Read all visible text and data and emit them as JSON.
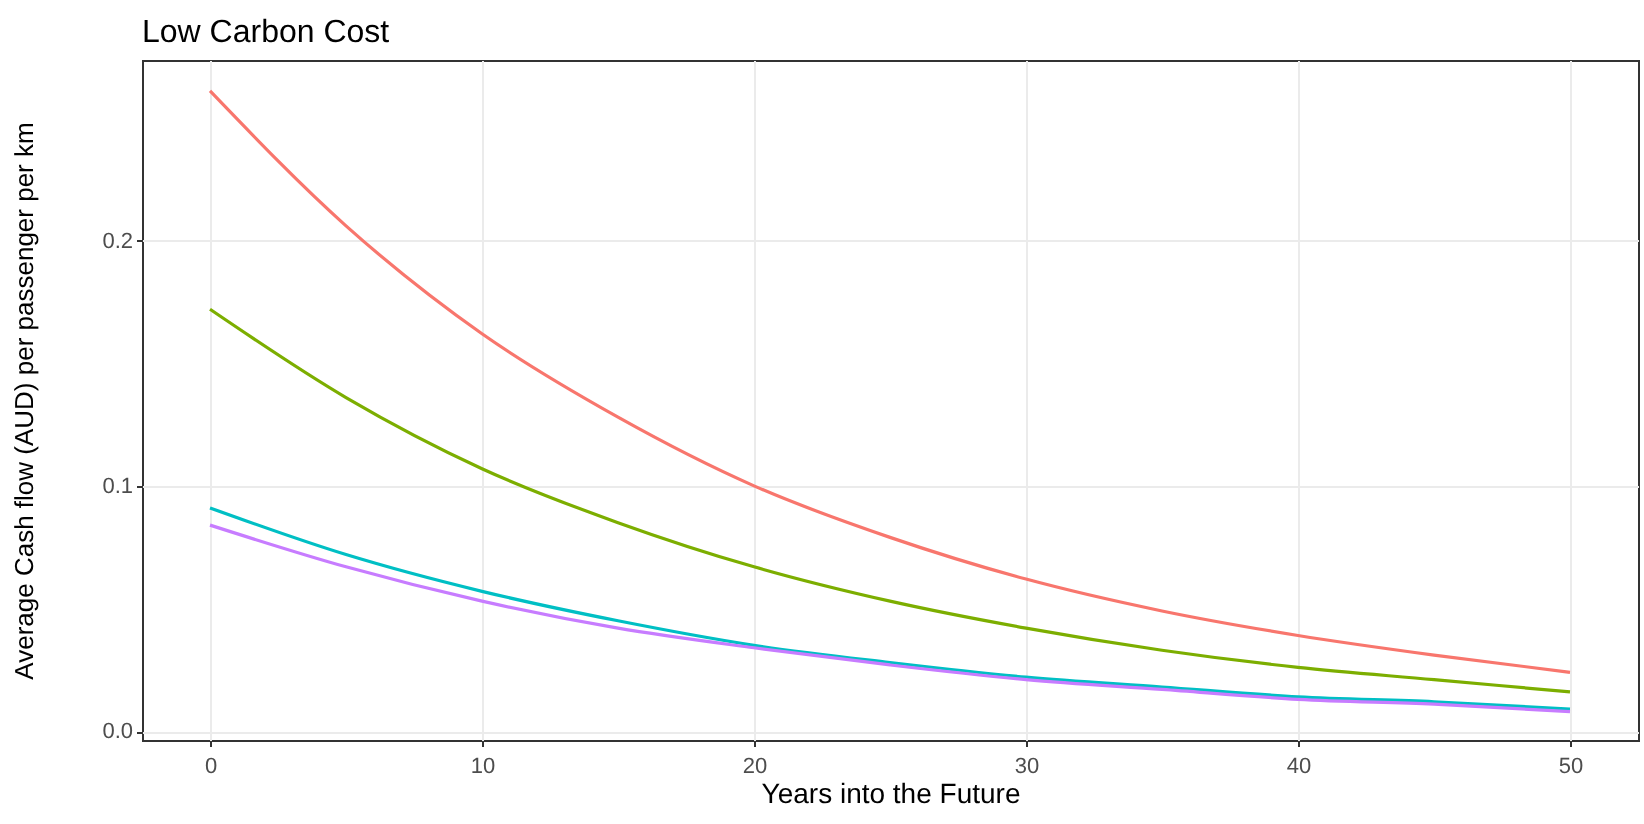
{
  "chart_data": {
    "type": "line",
    "title": "Low Carbon Cost",
    "xlabel": "Years into the Future",
    "ylabel": "Average Cash flow (AUD) per passenger per km",
    "x": [
      0,
      5,
      10,
      15,
      20,
      25,
      30,
      35,
      40,
      45,
      50
    ],
    "series": [
      {
        "color": "#f8766d",
        "values": [
          0.261,
          0.206,
          0.162,
          0.128,
          0.1,
          0.079,
          0.062,
          0.049,
          0.039,
          0.031,
          0.024
        ]
      },
      {
        "color": "#7cae00",
        "values": [
          0.172,
          0.136,
          0.107,
          0.085,
          0.067,
          0.053,
          0.042,
          0.033,
          0.026,
          0.021,
          0.016
        ]
      },
      {
        "color": "#00bfc4",
        "values": [
          0.091,
          0.072,
          0.057,
          0.045,
          0.035,
          0.028,
          0.022,
          0.018,
          0.014,
          0.012,
          0.009
        ]
      },
      {
        "color": "#c77cff",
        "values": [
          0.084,
          0.067,
          0.053,
          0.042,
          0.034,
          0.027,
          0.021,
          0.017,
          0.013,
          0.011,
          0.008
        ]
      }
    ],
    "xlim": [
      -2.5,
      52.5
    ],
    "xticks": [
      0,
      10,
      20,
      30,
      40,
      50
    ],
    "ylim": [
      -0.0036,
      0.2736
    ],
    "yticks": [
      {
        "value": 0,
        "label": "0.0"
      },
      {
        "value": 0.1,
        "label": "0.1"
      },
      {
        "value": 0.2,
        "label": "0.2"
      }
    ],
    "grid": true,
    "legend": false,
    "marker": "none",
    "line_style": "solid"
  }
}
